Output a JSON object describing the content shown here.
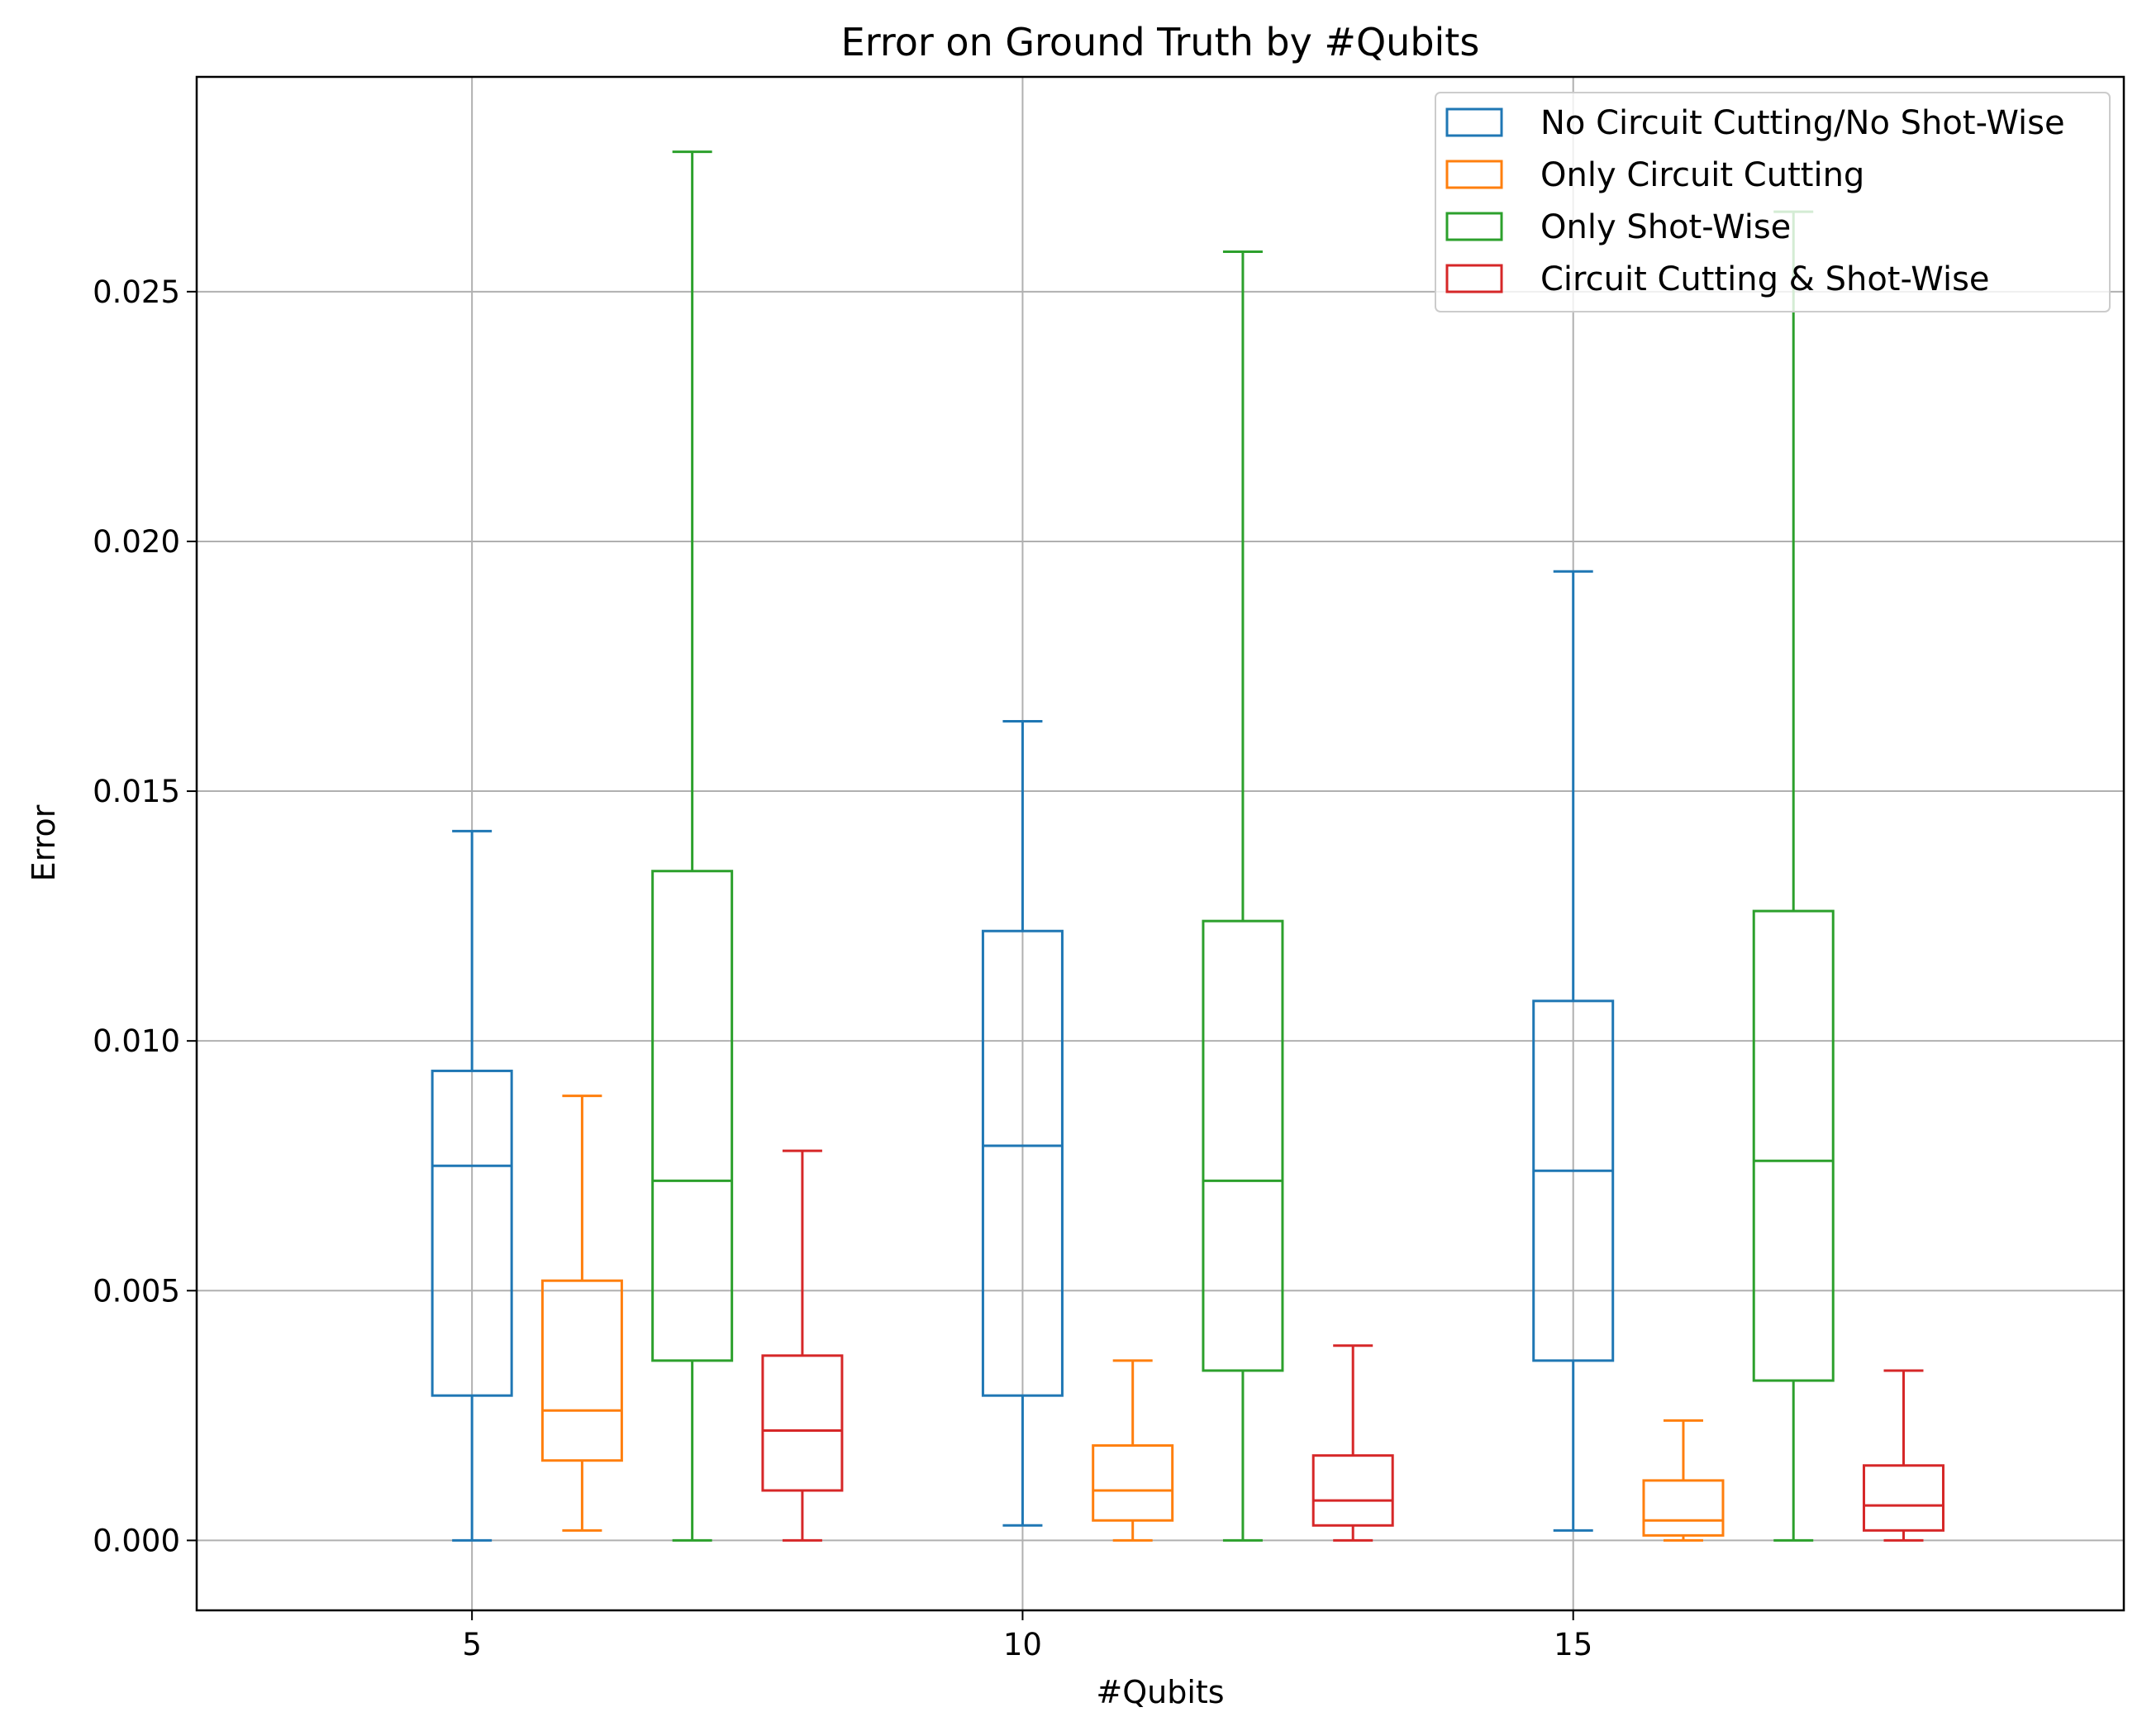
{
  "chart_data": {
    "type": "box",
    "title": "Error on Ground Truth by #Qubits",
    "xlabel": "#Qubits",
    "ylabel": "Error",
    "xlim": [
      2.5,
      20
    ],
    "ylim": [
      -0.0014,
      0.0293
    ],
    "x_ticks": [
      5,
      10,
      15
    ],
    "x_tick_labels": [
      "5",
      "10",
      "15"
    ],
    "y_ticks": [
      0,
      0.005,
      0.01,
      0.015,
      0.02,
      0.025
    ],
    "y_tick_labels": [
      "0.000",
      "0.005",
      "0.010",
      "0.015",
      "0.020",
      "0.025"
    ],
    "grid": true,
    "legend_position": "top-right",
    "series": [
      {
        "name": "No Circuit Cutting/No Shot-Wise",
        "color": "#1f77b4",
        "boxes": [
          {
            "qubits": 5,
            "position": 5,
            "whisker_low": 0.0,
            "q1": 0.0029,
            "median": 0.0075,
            "q3": 0.0094,
            "whisker_high": 0.0142
          },
          {
            "qubits": 10,
            "position": 10,
            "whisker_low": 0.0003,
            "q1": 0.0029,
            "median": 0.0079,
            "q3": 0.0122,
            "whisker_high": 0.0164
          },
          {
            "qubits": 15,
            "position": 15,
            "whisker_low": 0.0002,
            "q1": 0.0036,
            "median": 0.0074,
            "q3": 0.0108,
            "whisker_high": 0.0194
          }
        ]
      },
      {
        "name": "Only Circuit Cutting",
        "color": "#ff7f0e",
        "boxes": [
          {
            "qubits": 5,
            "position": 6,
            "whisker_low": 0.0002,
            "q1": 0.0016,
            "median": 0.0026,
            "q3": 0.0052,
            "whisker_high": 0.0089
          },
          {
            "qubits": 10,
            "position": 11,
            "whisker_low": 0.0,
            "q1": 0.0004,
            "median": 0.001,
            "q3": 0.0019,
            "whisker_high": 0.0036
          },
          {
            "qubits": 15,
            "position": 16,
            "whisker_low": 0.0,
            "q1": 0.0001,
            "median": 0.0004,
            "q3": 0.0012,
            "whisker_high": 0.0024
          }
        ]
      },
      {
        "name": "Only Shot-Wise",
        "color": "#2ca02c",
        "boxes": [
          {
            "qubits": 5,
            "position": 7,
            "whisker_low": 0.0,
            "q1": 0.0036,
            "median": 0.0072,
            "q3": 0.0134,
            "whisker_high": 0.0278
          },
          {
            "qubits": 10,
            "position": 12,
            "whisker_low": 0.0,
            "q1": 0.0034,
            "median": 0.0072,
            "q3": 0.0124,
            "whisker_high": 0.0258
          },
          {
            "qubits": 15,
            "position": 17,
            "whisker_low": 0.0,
            "q1": 0.0032,
            "median": 0.0076,
            "q3": 0.0126,
            "whisker_high": 0.0266
          }
        ]
      },
      {
        "name": "Circuit Cutting & Shot-Wise",
        "color": "#d62728",
        "boxes": [
          {
            "qubits": 5,
            "position": 8,
            "whisker_low": 0.0,
            "q1": 0.001,
            "median": 0.0022,
            "q3": 0.0037,
            "whisker_high": 0.0078
          },
          {
            "qubits": 10,
            "position": 13,
            "whisker_low": 0.0,
            "q1": 0.0003,
            "median": 0.0008,
            "q3": 0.0017,
            "whisker_high": 0.0039
          },
          {
            "qubits": 15,
            "position": 18,
            "whisker_low": 0.0,
            "q1": 0.0002,
            "median": 0.0007,
            "q3": 0.0015,
            "whisker_high": 0.0034
          }
        ]
      }
    ]
  }
}
